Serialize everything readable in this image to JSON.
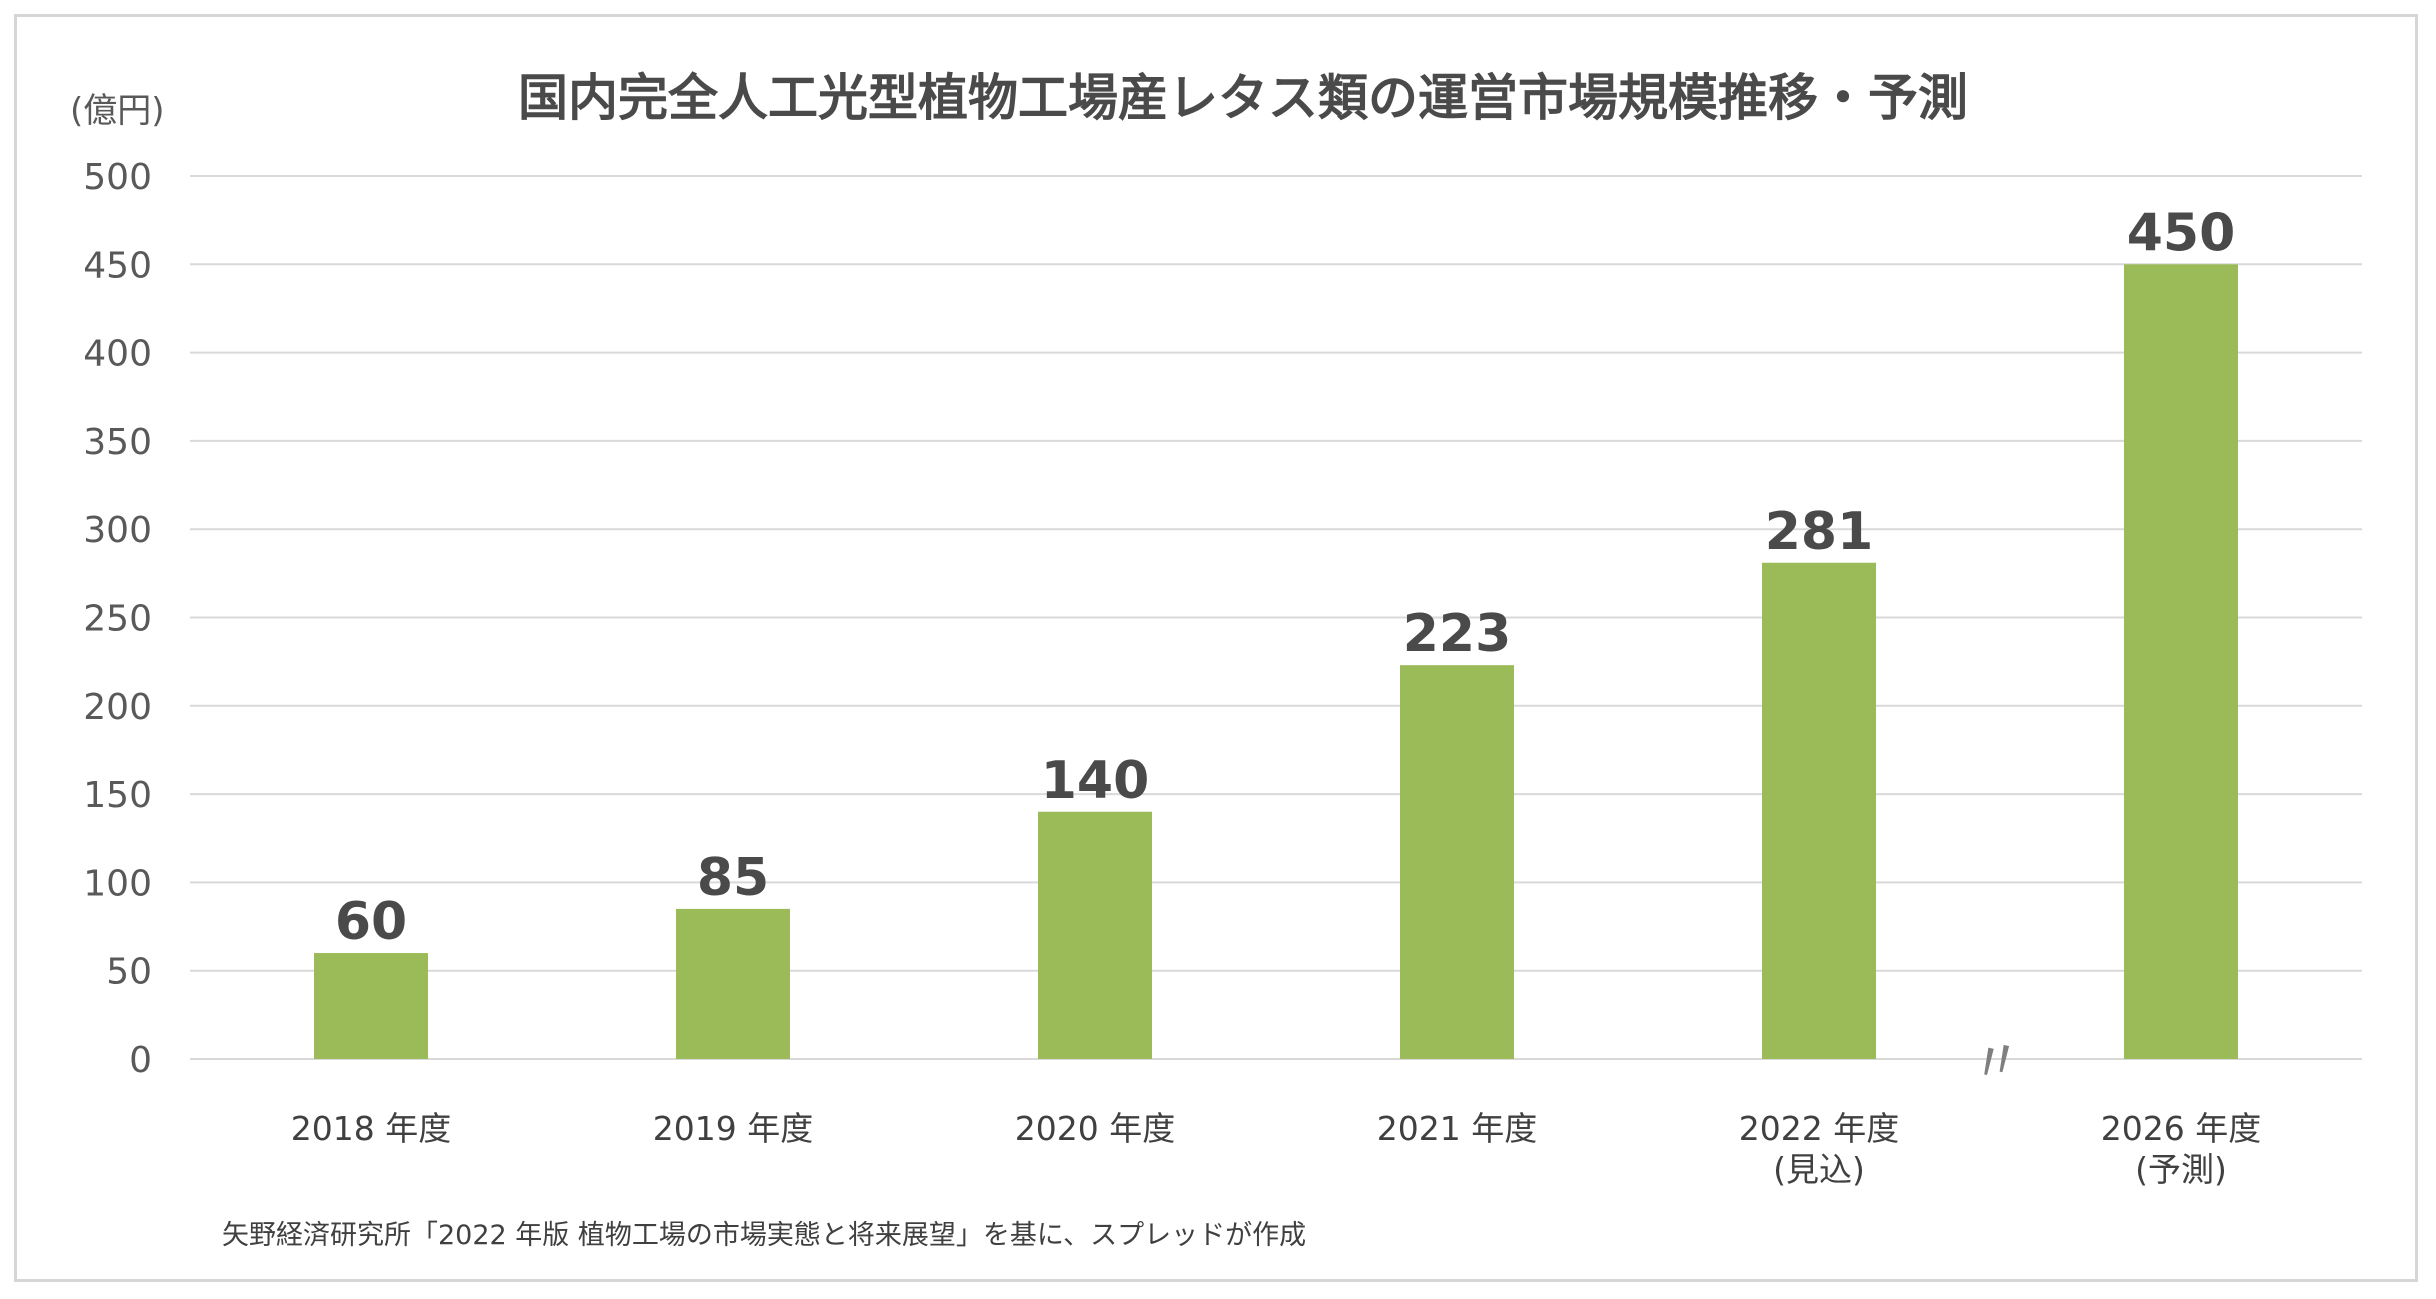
{
  "chart_data": {
    "type": "bar",
    "title": "国内完全人工光型植物工場産レタス類の運営市場規模推移・予測",
    "ylabel": "(億円)",
    "xlabel": "",
    "ylim": [
      0,
      500
    ],
    "yticks": [
      0,
      50,
      100,
      150,
      200,
      250,
      300,
      350,
      400,
      450,
      500
    ],
    "categories": [
      [
        "2018 年度"
      ],
      [
        "2019 年度"
      ],
      [
        "2020 年度"
      ],
      [
        "2021 年度"
      ],
      [
        "2022 年度",
        "(見込)"
      ],
      [
        "2026 年度",
        "(予測)"
      ]
    ],
    "values": [
      60,
      85,
      140,
      223,
      281,
      450
    ],
    "data_labels": [
      "60",
      "85",
      "140",
      "223",
      "281",
      "450"
    ],
    "axis_break": "〃",
    "bar_color": "#9bbb59",
    "grid": true,
    "legend": "none",
    "source": "矢野経済研究所「2022 年版 植物工場の市場実態と将来展望」を基に、スプレッドが作成"
  }
}
